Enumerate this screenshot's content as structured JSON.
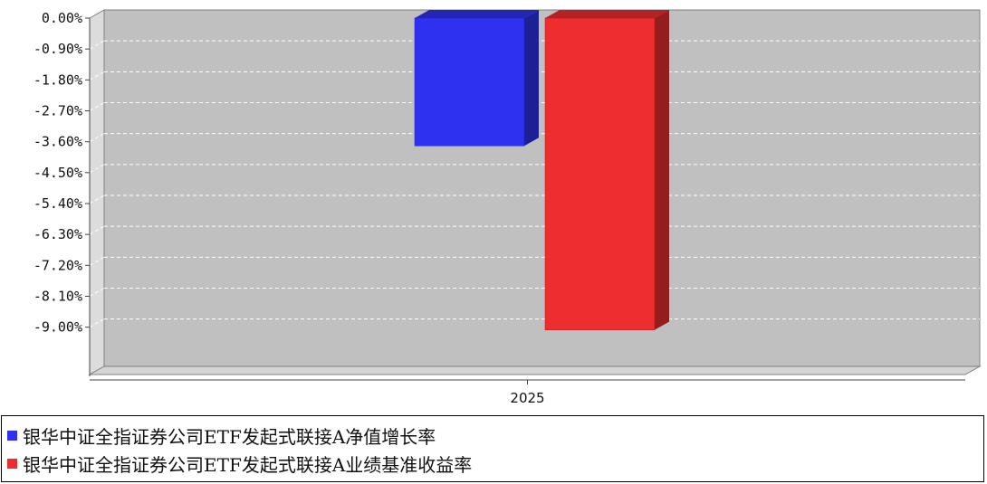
{
  "chart_data": {
    "type": "bar",
    "categories": [
      "2025"
    ],
    "series": [
      {
        "name": "银华中证全指证券公司ETF发起式联接A净值增长率",
        "values": [
          -3.72
        ],
        "color": "#2e32f0"
      },
      {
        "name": "银华中证全指证券公司ETF发起式联接A业绩基准收益率",
        "values": [
          -9.08
        ],
        "color": "#ee2e2e"
      }
    ],
    "y_ticks": [
      "0.00%",
      "-0.90%",
      "-1.80%",
      "-2.70%",
      "-3.60%",
      "-4.50%",
      "-5.40%",
      "-6.30%",
      "-7.20%",
      "-8.10%",
      "-9.00%"
    ],
    "ylim": [
      -10.3,
      0
    ],
    "grid": true,
    "legend_position": "bottom",
    "plot_background": "#c0c0c0"
  }
}
